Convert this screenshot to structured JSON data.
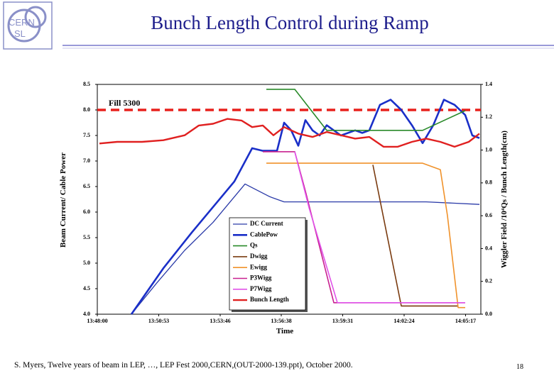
{
  "logo": {
    "line1": "CERN",
    "line2": "SL"
  },
  "footer": "S. Myers, Twelve years of beam in LEP, …,  LEP Fest 2000,CERN,(OUT-2000-139.ppt), October 2000.",
  "page_number": "18",
  "chart_data": {
    "type": "line",
    "title": "Bunch Length Control during Ramp",
    "x_label": "Time",
    "y_label": "Beam Current/ Cable Power",
    "y2_label": "Wiggler Field /10⁴Qs / Bunch Length(cm)",
    "xlim": [
      "13:48:00",
      "14:06:00"
    ],
    "xticks": [
      "13:48:00",
      "13:50:53",
      "13:53:46",
      "13:56:38",
      "13:59:31",
      "14:02:24",
      "14:05:17"
    ],
    "ylim": [
      4,
      8.5
    ],
    "yticks": [
      {
        "value": 4,
        "label": "4.0"
      },
      4.5,
      {
        "value": 5,
        "label": "5.0"
      },
      5.5,
      {
        "value": 6,
        "label": "6.0"
      },
      6.5,
      {
        "value": 7,
        "label": "7.0"
      },
      7.5,
      {
        "value": 8,
        "label": "8.0"
      },
      8.5
    ],
    "y2lim": [
      0,
      1.4
    ],
    "y2ticks": [
      {
        "value": 0,
        "label": "0.0"
      },
      0.2,
      0.4,
      0.6,
      0.8,
      {
        "value": 1,
        "label": "1.0"
      },
      1.2,
      1.4
    ],
    "reference_line": {
      "label": "Fill 5300",
      "value": 8.0,
      "color": "#e8201c"
    },
    "legend": "lower center",
    "series": [
      {
        "name": "DC Current",
        "color": "#2a3aa8",
        "width": 1.3,
        "x": [
          "13:49:36",
          "13:50:46",
          "13:52:06",
          "13:53:26",
          "13:54:26",
          "13:54:56",
          "13:56:06",
          "13:56:46",
          "14:00:06",
          "14:03:26",
          "14:05:56"
        ],
        "values": [
          4.0,
          4.6,
          5.25,
          5.8,
          6.3,
          6.55,
          6.3,
          6.2,
          6.2,
          6.2,
          6.15
        ]
      },
      {
        "name": "CablePow",
        "color": "#1a2fc8",
        "width": 2.6,
        "x": [
          "13:49:36",
          "13:51:06",
          "13:52:26",
          "13:53:26",
          "13:54:26",
          "13:55:16",
          "13:55:46",
          "13:56:26",
          "13:56:46",
          "13:57:06",
          "13:57:26",
          "13:57:46",
          "13:58:06",
          "13:58:26",
          "13:58:46",
          "13:59:26",
          "14:00:06",
          "14:00:26",
          "14:00:46",
          "14:01:16",
          "14:01:46",
          "14:02:16",
          "14:02:46",
          "14:03:16",
          "14:03:46",
          "14:04:16",
          "14:04:46",
          "14:05:16",
          "14:05:36",
          "14:05:56"
        ],
        "values": [
          4.0,
          4.9,
          5.6,
          6.1,
          6.6,
          7.25,
          7.2,
          7.2,
          7.75,
          7.6,
          7.3,
          7.8,
          7.6,
          7.5,
          7.7,
          7.5,
          7.6,
          7.55,
          7.6,
          8.1,
          8.2,
          8.0,
          7.7,
          7.35,
          7.7,
          8.2,
          8.1,
          7.9,
          7.5,
          7.45
        ]
      },
      {
        "name": "Qs",
        "color": "#2a8a2a",
        "width": 1.6,
        "axis": "y2",
        "x": [
          "13:55:56",
          "13:57:16",
          "13:58:46",
          "14:03:16",
          "14:05:16"
        ],
        "values": [
          1.37,
          1.37,
          1.12,
          1.12,
          1.24
        ]
      },
      {
        "name": "Dwigg",
        "color": "#7a3b10",
        "width": 1.6,
        "axis": "y2",
        "x": [
          "14:00:56",
          "14:02:16",
          "14:04:56"
        ],
        "values": [
          0.91,
          0.05,
          0.05
        ]
      },
      {
        "name": "Ewigg",
        "color": "#f0922b",
        "width": 1.6,
        "axis": "y2",
        "x": [
          "13:55:56",
          "14:03:16",
          "14:04:06",
          "14:04:26",
          "14:04:56",
          "14:05:16"
        ],
        "values": [
          0.92,
          0.92,
          0.88,
          0.6,
          0.04,
          0.04
        ]
      },
      {
        "name": "P3Wigg",
        "color": "#c8208f",
        "width": 1.6,
        "axis": "y2",
        "x": [
          "13:55:46",
          "13:57:16",
          "13:57:46",
          "13:59:06",
          "14:05:16"
        ],
        "values": [
          0.99,
          0.99,
          0.75,
          0.07,
          0.07
        ]
      },
      {
        "name": "P7Wigg",
        "color": "#e052e8",
        "width": 1.6,
        "axis": "y2",
        "x": [
          "13:57:16",
          "13:57:56",
          "13:59:16",
          "14:05:16"
        ],
        "values": [
          0.99,
          0.65,
          0.07,
          0.07
        ]
      },
      {
        "name": "Bunch Length",
        "color": "#e02020",
        "width": 2.4,
        "axis": "y2",
        "x": [
          "13:48:06",
          "13:48:56",
          "13:50:06",
          "13:51:06",
          "13:52:06",
          "13:52:46",
          "13:53:26",
          "13:54:06",
          "13:54:46",
          "13:55:16",
          "13:55:46",
          "13:56:16",
          "13:56:46",
          "13:57:26",
          "13:58:06",
          "13:58:46",
          "13:59:26",
          "14:00:06",
          "14:00:46",
          "14:01:26",
          "14:02:06",
          "14:02:46",
          "14:03:26",
          "14:04:06",
          "14:04:46",
          "14:05:26",
          "14:05:56"
        ],
        "values": [
          1.04,
          1.05,
          1.05,
          1.06,
          1.09,
          1.15,
          1.16,
          1.19,
          1.18,
          1.14,
          1.15,
          1.09,
          1.14,
          1.1,
          1.08,
          1.11,
          1.09,
          1.07,
          1.08,
          1.02,
          1.02,
          1.05,
          1.07,
          1.05,
          1.02,
          1.05,
          1.1
        ]
      }
    ]
  }
}
